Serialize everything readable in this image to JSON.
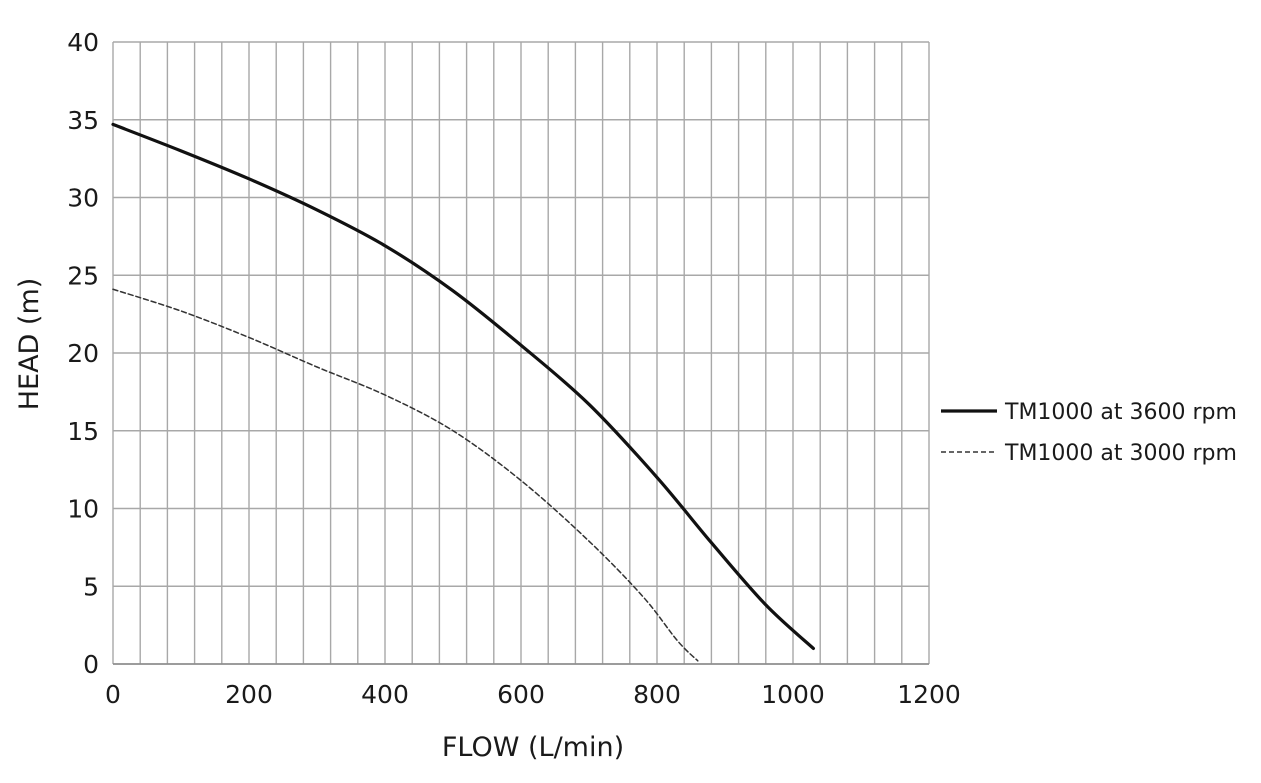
{
  "chart_data": {
    "type": "line",
    "title": "",
    "xlabel": "FLOW (L/min)",
    "ylabel": "HEAD (m)",
    "xlim": [
      0,
      1200
    ],
    "ylim": [
      0,
      40
    ],
    "x_ticks": [
      0,
      200,
      400,
      600,
      800,
      1000,
      1200
    ],
    "y_ticks": [
      0,
      5,
      10,
      15,
      20,
      25,
      30,
      35,
      40
    ],
    "x_minor_step": 40,
    "y_grid_step": 5,
    "grid": true,
    "legend_position": "right",
    "series": [
      {
        "name": "TM1000 at 3600 rpm",
        "line_style": "solid",
        "color": "#111111",
        "x": [
          0,
          100,
          200,
          300,
          400,
          500,
          600,
          700,
          800,
          880,
          960,
          1030
        ],
        "y": [
          34.7,
          33.0,
          31.2,
          29.2,
          26.9,
          24.0,
          20.5,
          16.7,
          12.0,
          7.8,
          3.8,
          1.0
        ]
      },
      {
        "name": "TM1000 at 3000 rpm",
        "line_style": "dashed",
        "color": "#333333",
        "x": [
          0,
          100,
          200,
          300,
          400,
          500,
          600,
          700,
          780,
          830,
          860
        ],
        "y": [
          24.1,
          22.7,
          21.0,
          19.1,
          17.3,
          15.0,
          11.8,
          7.9,
          4.3,
          1.5,
          0.2
        ]
      }
    ]
  }
}
